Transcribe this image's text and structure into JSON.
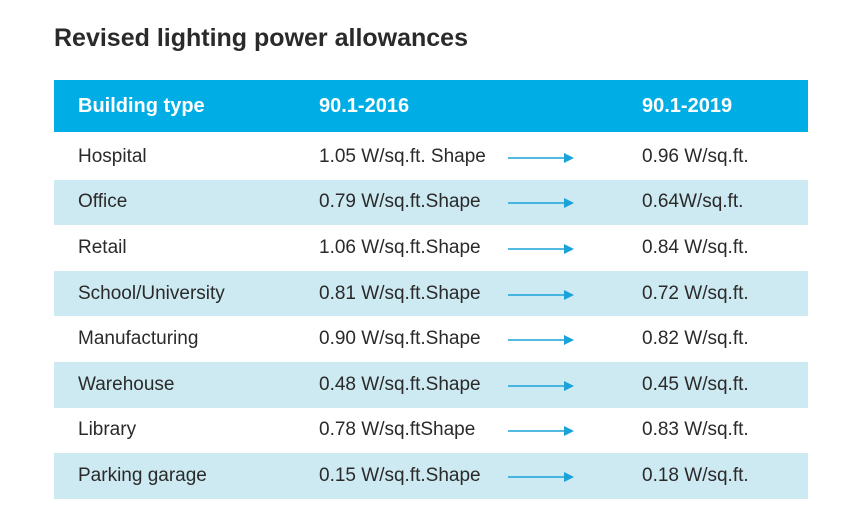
{
  "title": "Revised lighting power allowances",
  "table": {
    "headers": {
      "building_type": "Building type",
      "std_2016": "90.1-2016",
      "std_2019": "90.1-2019"
    },
    "rows": [
      {
        "building_type": "Hospital",
        "std_2016": "1.05 W/sq.ft. Shape",
        "std_2019": "0.96 W/sq.ft."
      },
      {
        "building_type": "Office",
        "std_2016": "0.79 W/sq.ft.Shape",
        "std_2019": "0.64W/sq.ft."
      },
      {
        "building_type": "Retail",
        "std_2016": "1.06 W/sq.ft.Shape",
        "std_2019": "0.84 W/sq.ft."
      },
      {
        "building_type": "School/University",
        "std_2016": "0.81 W/sq.ft.Shape",
        "std_2019": "0.72 W/sq.ft."
      },
      {
        "building_type": "Manufacturing",
        "std_2016": "0.90 W/sq.ft.Shape",
        "std_2019": "0.82 W/sq.ft."
      },
      {
        "building_type": "Warehouse",
        "std_2016": "0.48 W/sq.ft.Shape",
        "std_2019": "0.45 W/sq.ft."
      },
      {
        "building_type": "Library",
        "std_2016": "0.78 W/sq.ftShape",
        "std_2019": "0.83 W/sq.ft."
      },
      {
        "building_type": "Parking garage",
        "std_2016": "0.15 W/sq.ft.Shape",
        "std_2019": "0.18 W/sq.ft."
      }
    ]
  },
  "colors": {
    "header_bg": "#00ade5",
    "row_shade": "#cde9f1",
    "arrow": "#1aa3d9",
    "text": "#2a2a2a"
  },
  "icons": {
    "row_arrow": "right-arrow-icon"
  }
}
